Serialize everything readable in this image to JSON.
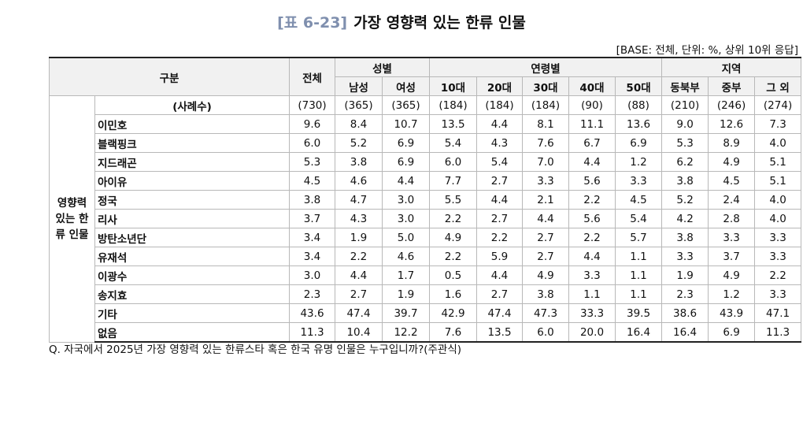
{
  "header": {
    "label": "[표 6-23]",
    "title": "가장 영향력 있는 한류 인물",
    "base": "[BASE: 전체, 단위: %, 상위 10위 응답]"
  },
  "table": {
    "group_header": "구분",
    "total_header": "전체",
    "column_groups": [
      {
        "label": "성별",
        "columns": [
          "남성",
          "여성"
        ]
      },
      {
        "label": "연령별",
        "columns": [
          "10대",
          "20대",
          "30대",
          "40대",
          "50대"
        ]
      },
      {
        "label": "지역",
        "columns": [
          "동북부",
          "중부",
          "그 외"
        ]
      }
    ],
    "row_group": "영향력 있는 한류 인물",
    "sample_row": {
      "label": "(사례수)",
      "values": [
        "(730)",
        "(365)",
        "(365)",
        "(184)",
        "(184)",
        "(184)",
        "(90)",
        "(88)",
        "(210)",
        "(246)",
        "(274)"
      ]
    },
    "rows": [
      {
        "name": "이민호",
        "values": [
          "9.6",
          "8.4",
          "10.7",
          "13.5",
          "4.4",
          "8.1",
          "11.1",
          "13.6",
          "9.0",
          "12.6",
          "7.3"
        ]
      },
      {
        "name": "블랙핑크",
        "values": [
          "6.0",
          "5.2",
          "6.9",
          "5.4",
          "4.3",
          "7.6",
          "6.7",
          "6.9",
          "5.3",
          "8.9",
          "4.0"
        ]
      },
      {
        "name": "지드래곤",
        "values": [
          "5.3",
          "3.8",
          "6.9",
          "6.0",
          "5.4",
          "7.0",
          "4.4",
          "1.2",
          "6.2",
          "4.9",
          "5.1"
        ]
      },
      {
        "name": "아이유",
        "values": [
          "4.5",
          "4.6",
          "4.4",
          "7.7",
          "2.7",
          "3.3",
          "5.6",
          "3.3",
          "3.8",
          "4.5",
          "5.1"
        ]
      },
      {
        "name": "정국",
        "values": [
          "3.8",
          "4.7",
          "3.0",
          "5.5",
          "4.4",
          "2.1",
          "2.2",
          "4.5",
          "5.2",
          "2.4",
          "4.0"
        ]
      },
      {
        "name": "리사",
        "values": [
          "3.7",
          "4.3",
          "3.0",
          "2.2",
          "2.7",
          "4.4",
          "5.6",
          "5.4",
          "4.2",
          "2.8",
          "4.0"
        ]
      },
      {
        "name": "방탄소년단",
        "values": [
          "3.4",
          "1.9",
          "5.0",
          "4.9",
          "2.2",
          "2.7",
          "2.2",
          "5.7",
          "3.8",
          "3.3",
          "3.3"
        ]
      },
      {
        "name": "유재석",
        "values": [
          "3.4",
          "2.2",
          "4.6",
          "2.2",
          "5.9",
          "2.7",
          "4.4",
          "1.1",
          "3.3",
          "3.7",
          "3.3"
        ]
      },
      {
        "name": "이광수",
        "values": [
          "3.0",
          "4.4",
          "1.7",
          "0.5",
          "4.4",
          "4.9",
          "3.3",
          "1.1",
          "1.9",
          "4.9",
          "2.2"
        ]
      },
      {
        "name": "송지효",
        "values": [
          "2.3",
          "2.7",
          "1.9",
          "1.6",
          "2.7",
          "3.8",
          "1.1",
          "1.1",
          "2.3",
          "1.2",
          "3.3"
        ]
      },
      {
        "name": "기타",
        "values": [
          "43.6",
          "47.4",
          "39.7",
          "42.9",
          "47.4",
          "47.3",
          "33.3",
          "39.5",
          "38.6",
          "43.9",
          "47.1"
        ]
      },
      {
        "name": "없음",
        "values": [
          "11.3",
          "10.4",
          "12.2",
          "7.6",
          "13.5",
          "6.0",
          "20.0",
          "16.4",
          "16.4",
          "6.9",
          "11.3"
        ]
      }
    ]
  },
  "footnote": "Q. 자국에서 2025년 가장 영향력 있는 한류스타 혹은 한국 유명 인물은 누구입니까?(주관식)"
}
